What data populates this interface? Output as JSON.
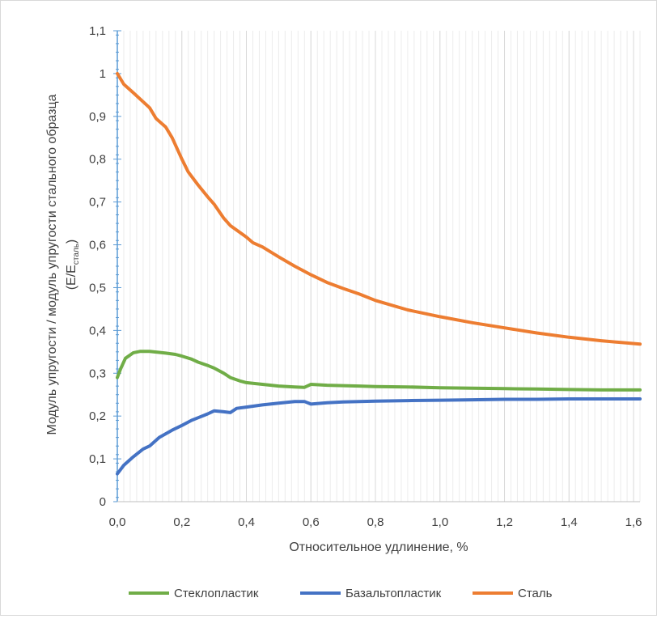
{
  "chart_data": {
    "type": "line",
    "xlabel": "Относительное удлинение, %",
    "ylabel_line1": "Модуль упругости / модуль упругости стального образца",
    "ylabel_line2_prefix": "(E/E",
    "ylabel_line2_sub": "сталь",
    "ylabel_line2_suffix": ")",
    "xlim": [
      0,
      1.62
    ],
    "ylim": [
      0,
      1.1
    ],
    "x_ticks": [
      0,
      0.2,
      0.4,
      0.6,
      0.8,
      1.0,
      1.2,
      1.4,
      1.6
    ],
    "x_tick_labels": [
      "0,0",
      "0,2",
      "0,4",
      "0,6",
      "0,8",
      "1,0",
      "1,2",
      "1,4",
      "1,6"
    ],
    "y_ticks": [
      0,
      0.1,
      0.2,
      0.3,
      0.4,
      0.5,
      0.6,
      0.7,
      0.8,
      0.9,
      1.0,
      1.1
    ],
    "y_tick_labels": [
      "0",
      "0,1",
      "0,2",
      "0,3",
      "0,4",
      "0,5",
      "0,6",
      "0,7",
      "0,8",
      "0,9",
      "1",
      "1,1"
    ],
    "grid": "vertical",
    "legend_position": "bottom",
    "series": [
      {
        "name": "Стеклопластик",
        "color": "#70ad47",
        "points": [
          [
            0,
            0.29
          ],
          [
            0.01,
            0.31
          ],
          [
            0.025,
            0.335
          ],
          [
            0.05,
            0.348
          ],
          [
            0.07,
            0.351
          ],
          [
            0.1,
            0.351
          ],
          [
            0.15,
            0.347
          ],
          [
            0.18,
            0.344
          ],
          [
            0.2,
            0.34
          ],
          [
            0.23,
            0.333
          ],
          [
            0.25,
            0.326
          ],
          [
            0.28,
            0.318
          ],
          [
            0.3,
            0.312
          ],
          [
            0.33,
            0.3
          ],
          [
            0.35,
            0.29
          ],
          [
            0.38,
            0.282
          ],
          [
            0.4,
            0.278
          ],
          [
            0.45,
            0.274
          ],
          [
            0.5,
            0.27
          ],
          [
            0.55,
            0.268
          ],
          [
            0.58,
            0.267
          ],
          [
            0.6,
            0.274
          ],
          [
            0.65,
            0.272
          ],
          [
            0.7,
            0.271
          ],
          [
            0.75,
            0.27
          ],
          [
            0.8,
            0.269
          ],
          [
            0.9,
            0.268
          ],
          [
            1.0,
            0.266
          ],
          [
            1.1,
            0.265
          ],
          [
            1.2,
            0.264
          ],
          [
            1.3,
            0.263
          ],
          [
            1.4,
            0.262
          ],
          [
            1.5,
            0.261
          ],
          [
            1.62,
            0.261
          ]
        ]
      },
      {
        "name": "Базальтопластик",
        "color": "#4472c4",
        "points": [
          [
            0,
            0.065
          ],
          [
            0.02,
            0.085
          ],
          [
            0.05,
            0.105
          ],
          [
            0.08,
            0.123
          ],
          [
            0.1,
            0.13
          ],
          [
            0.13,
            0.15
          ],
          [
            0.17,
            0.167
          ],
          [
            0.2,
            0.178
          ],
          [
            0.23,
            0.19
          ],
          [
            0.25,
            0.196
          ],
          [
            0.28,
            0.205
          ],
          [
            0.3,
            0.212
          ],
          [
            0.33,
            0.21
          ],
          [
            0.35,
            0.208
          ],
          [
            0.37,
            0.218
          ],
          [
            0.4,
            0.221
          ],
          [
            0.45,
            0.226
          ],
          [
            0.5,
            0.23
          ],
          [
            0.55,
            0.234
          ],
          [
            0.58,
            0.234
          ],
          [
            0.6,
            0.228
          ],
          [
            0.65,
            0.231
          ],
          [
            0.7,
            0.233
          ],
          [
            0.75,
            0.234
          ],
          [
            0.8,
            0.235
          ],
          [
            0.9,
            0.236
          ],
          [
            1.0,
            0.237
          ],
          [
            1.1,
            0.238
          ],
          [
            1.2,
            0.239
          ],
          [
            1.3,
            0.239
          ],
          [
            1.4,
            0.24
          ],
          [
            1.5,
            0.24
          ],
          [
            1.62,
            0.24
          ]
        ]
      },
      {
        "name": "Сталь",
        "color": "#ed7d31",
        "points": [
          [
            0,
            1.0
          ],
          [
            0.02,
            0.975
          ],
          [
            0.05,
            0.955
          ],
          [
            0.1,
            0.92
          ],
          [
            0.12,
            0.895
          ],
          [
            0.15,
            0.875
          ],
          [
            0.17,
            0.85
          ],
          [
            0.2,
            0.8
          ],
          [
            0.22,
            0.77
          ],
          [
            0.25,
            0.74
          ],
          [
            0.28,
            0.712
          ],
          [
            0.3,
            0.695
          ],
          [
            0.33,
            0.662
          ],
          [
            0.35,
            0.645
          ],
          [
            0.4,
            0.618
          ],
          [
            0.42,
            0.605
          ],
          [
            0.45,
            0.595
          ],
          [
            0.5,
            0.572
          ],
          [
            0.55,
            0.55
          ],
          [
            0.6,
            0.53
          ],
          [
            0.65,
            0.512
          ],
          [
            0.7,
            0.498
          ],
          [
            0.75,
            0.485
          ],
          [
            0.8,
            0.47
          ],
          [
            0.9,
            0.448
          ],
          [
            1.0,
            0.432
          ],
          [
            1.1,
            0.418
          ],
          [
            1.2,
            0.406
          ],
          [
            1.3,
            0.394
          ],
          [
            1.4,
            0.384
          ],
          [
            1.5,
            0.376
          ],
          [
            1.62,
            0.368
          ]
        ]
      }
    ]
  }
}
